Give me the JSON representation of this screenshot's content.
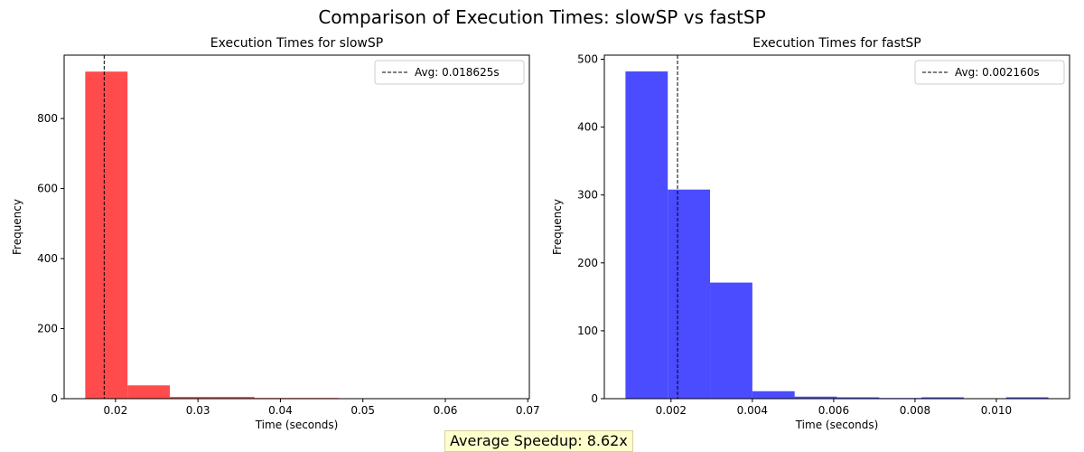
{
  "figure": {
    "title": "Comparison of Execution Times: slowSP vs fastSP",
    "footer_note": "Average Speedup: 8.62x"
  },
  "chart_data": [
    {
      "type": "bar",
      "title": "Execution Times for slowSP",
      "xlabel": "Time (seconds)",
      "ylabel": "Frequency",
      "color": "#ff4b4b",
      "bin_edges": [
        0.01633,
        0.02146,
        0.02659,
        0.03172,
        0.03685,
        0.04198,
        0.04711,
        0.05224,
        0.05737,
        0.0625,
        0.06763
      ],
      "values": [
        934,
        38,
        5,
        5,
        2,
        2,
        0,
        0,
        1,
        1
      ],
      "xlim": [
        0.01377,
        0.07019
      ],
      "ylim": [
        0,
        981
      ],
      "xticks": [
        0.02,
        0.03,
        0.04,
        0.05,
        0.06,
        0.07
      ],
      "xtick_labels": [
        "0.02",
        "0.03",
        "0.04",
        "0.05",
        "0.06",
        "0.07"
      ],
      "yticks": [
        0,
        200,
        400,
        600,
        800
      ],
      "ytick_labels": [
        "0",
        "200",
        "400",
        "600",
        "800"
      ],
      "avg_line": {
        "x": 0.018625,
        "label": "Avg: 0.018625s"
      },
      "legend_position": "upper right",
      "grid": false
    },
    {
      "type": "bar",
      "title": "Execution Times for fastSP",
      "xlabel": "Time (seconds)",
      "ylabel": "Frequency",
      "color": "#4b4bff",
      "bin_edges": [
        0.00088,
        0.00192,
        0.00296,
        0.004,
        0.00504,
        0.00608,
        0.00712,
        0.00816,
        0.0092,
        0.01024,
        0.01128
      ],
      "values": [
        482,
        308,
        171,
        11,
        3,
        2,
        1,
        2,
        0,
        2
      ],
      "xlim": [
        0.00036,
        0.0118
      ],
      "ylim": [
        0,
        506
      ],
      "xticks": [
        0.002,
        0.004,
        0.006,
        0.008,
        0.01
      ],
      "xtick_labels": [
        "0.002",
        "0.004",
        "0.006",
        "0.008",
        "0.010"
      ],
      "yticks": [
        0,
        100,
        200,
        300,
        400,
        500
      ],
      "ytick_labels": [
        "0",
        "100",
        "200",
        "300",
        "400",
        "500"
      ],
      "avg_line": {
        "x": 0.00216,
        "label": "Avg: 0.002160s"
      },
      "legend_position": "upper right",
      "grid": false
    }
  ]
}
